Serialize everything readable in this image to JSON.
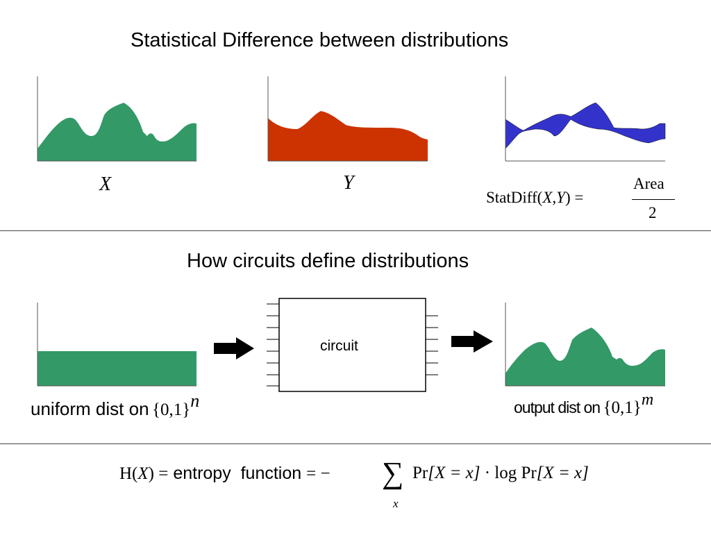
{
  "section1": {
    "title": "Statistical Difference between distributions",
    "label_x": "X",
    "label_y": "Y",
    "statdiff": {
      "lhs": "StatDiff(",
      "var1": "X",
      "comma": ",",
      "var2": "Y",
      "rhs": ") =",
      "numerator": "Area",
      "denominator": "2"
    },
    "colors": {
      "x_fill": "#339966",
      "y_fill": "#cc3300",
      "diff_fill": "#3333cc"
    }
  },
  "section2": {
    "title": "How circuits define distributions",
    "circuit_label": "circuit",
    "uniform_label": "uniform dist on",
    "uniform_set": "{0,1}",
    "uniform_exp": "n",
    "output_label": "output dist on",
    "output_set": "{0,1}",
    "output_exp": "m"
  },
  "section3": {
    "h": "H(",
    "var": "X",
    "close_eq": ") =",
    "entropy_text": "entropy  function",
    "eq_minus": "= −",
    "sum": "∑",
    "sum_index": "x",
    "pr1": "Pr",
    "bracket1": "[X = x]",
    "dot_log": "· log Pr",
    "bracket2": "[X = x]"
  }
}
